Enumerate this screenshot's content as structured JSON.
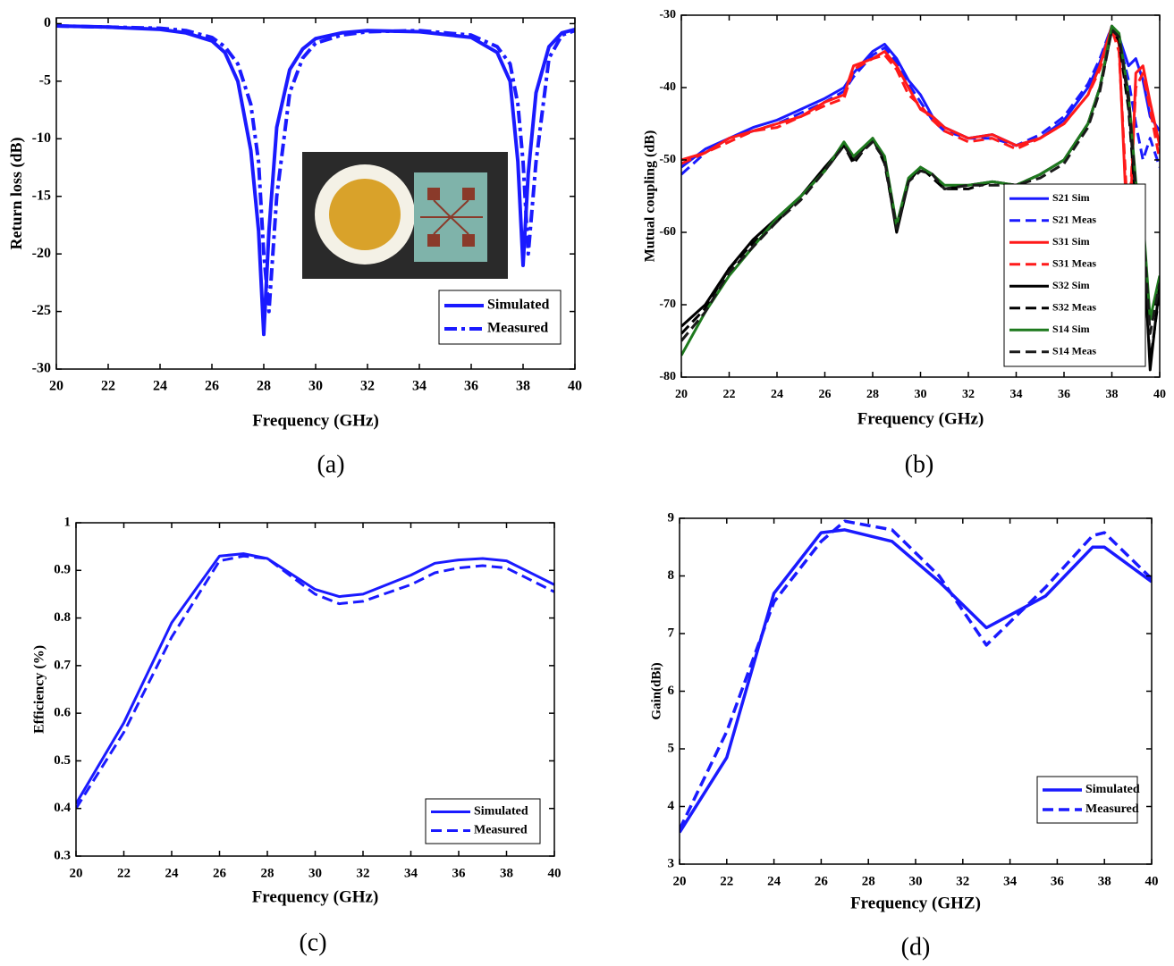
{
  "chart_data": [
    {
      "type": "line",
      "caption": "(a)",
      "xlabel": "Frequency (GHz)",
      "ylabel": "Return loss (dB)",
      "xlim": [
        20,
        40
      ],
      "xticks": [
        20,
        22,
        24,
        26,
        28,
        30,
        32,
        34,
        36,
        38,
        40
      ],
      "ylim": [
        -30,
        0.5
      ],
      "yticks": [
        0,
        -5,
        -10,
        -15,
        -20,
        -25,
        -30
      ],
      "legend": "lower right",
      "x": [
        20,
        22,
        24,
        25,
        26,
        26.5,
        27,
        27.5,
        27.8,
        28,
        28.2,
        28.5,
        29,
        29.5,
        30,
        31,
        32,
        34,
        36,
        37,
        37.5,
        37.8,
        38,
        38.2,
        38.5,
        39,
        39.5,
        40
      ],
      "series": [
        {
          "name": "Simulated",
          "color": "#1a1aff",
          "line_style": "solid",
          "values": [
            -0.2,
            -0.3,
            -0.5,
            -0.8,
            -1.5,
            -2.5,
            -5,
            -11,
            -18,
            -27,
            -18,
            -9,
            -4,
            -2.2,
            -1.3,
            -0.8,
            -0.6,
            -0.7,
            -1.2,
            -2.5,
            -5,
            -12,
            -21,
            -13,
            -6,
            -2,
            -0.8,
            -0.5
          ]
        },
        {
          "name": "Measured",
          "color": "#1a1aff",
          "line_style": "dashdot",
          "values": [
            -0.2,
            -0.3,
            -0.4,
            -0.6,
            -1.2,
            -2,
            -3.5,
            -7,
            -12,
            -20,
            -25,
            -15,
            -6,
            -3,
            -1.7,
            -1,
            -0.7,
            -0.6,
            -1,
            -2,
            -3.5,
            -7,
            -12,
            -20,
            -12,
            -3,
            -1,
            -0.6
          ]
        }
      ]
    },
    {
      "type": "line",
      "caption": "(b)",
      "xlabel": "Frequency (GHz)",
      "ylabel": "Mutual coupling (dB)",
      "xlim": [
        20,
        40
      ],
      "xticks": [
        20,
        22,
        24,
        26,
        28,
        30,
        32,
        34,
        36,
        38,
        40
      ],
      "ylim": [
        -80,
        -30
      ],
      "yticks": [
        -30,
        -40,
        -50,
        -60,
        -70,
        -80
      ],
      "legend": "lower right",
      "x": [
        20,
        21,
        22,
        23,
        24,
        25,
        26,
        26.8,
        27.2,
        28,
        28.5,
        29,
        29.5,
        30,
        30.5,
        31,
        32,
        33,
        34,
        35,
        36,
        37,
        37.5,
        38,
        38.3,
        38.7,
        39,
        39.3,
        39.6,
        40
      ],
      "series": [
        {
          "name": "S21 Sim",
          "color": "#1a1aff",
          "line_style": "solid",
          "values": [
            -51,
            -48.5,
            -47,
            -45.5,
            -44.5,
            -43,
            -41.5,
            -40,
            -38,
            -35,
            -34,
            -36,
            -39,
            -41,
            -44,
            -45.5,
            -47,
            -46.5,
            -48,
            -47,
            -44.5,
            -40,
            -36.5,
            -31.5,
            -33,
            -37,
            -36,
            -39,
            -44,
            -46
          ]
        },
        {
          "name": "S21 Meas",
          "color": "#1a1aff",
          "line_style": "dashed",
          "values": [
            -52,
            -49,
            -47,
            -46,
            -45,
            -43.5,
            -42,
            -40.5,
            -38.5,
            -35.5,
            -34.5,
            -36.5,
            -39.5,
            -42,
            -44.5,
            -46,
            -47,
            -47,
            -48,
            -46.5,
            -44,
            -39.5,
            -36,
            -31.5,
            -33.5,
            -39,
            -45,
            -50,
            -47,
            -51
          ]
        },
        {
          "name": "S31 Sim",
          "color": "#ff1a1a",
          "line_style": "solid",
          "values": [
            -50,
            -49,
            -47,
            -46,
            -45,
            -44,
            -42,
            -41,
            -37,
            -36,
            -35,
            -37,
            -40,
            -43,
            -44,
            -45.5,
            -47,
            -46.5,
            -48,
            -47,
            -45,
            -41,
            -37,
            -31.5,
            -34,
            -64,
            -38,
            -37,
            -42,
            -48
          ]
        },
        {
          "name": "S31 Meas",
          "color": "#ff1a1a",
          "line_style": "dashed",
          "values": [
            -50.5,
            -49,
            -47.5,
            -46,
            -45.5,
            -44,
            -42.5,
            -41.5,
            -37.5,
            -36,
            -35.5,
            -37.5,
            -41,
            -42.5,
            -44.5,
            -46,
            -47.5,
            -47,
            -48.5,
            -47,
            -45,
            -41,
            -37.5,
            -32,
            -35,
            -60,
            -40,
            -38,
            -43,
            -50
          ]
        },
        {
          "name": "S32 Sim",
          "color": "#000000",
          "line_style": "solid",
          "values": [
            -73,
            -70,
            -65,
            -61,
            -58,
            -55,
            -51,
            -48,
            -50,
            -47,
            -50,
            -60,
            -53,
            -51,
            -52,
            -54,
            -53.5,
            -53,
            -53.5,
            -52,
            -50,
            -45,
            -40,
            -32,
            -33,
            -42,
            -55,
            -60,
            -79,
            -67
          ]
        },
        {
          "name": "S32 Meas",
          "color": "#000000",
          "line_style": "dashed",
          "values": [
            -74,
            -70.5,
            -65,
            -61.5,
            -58.5,
            -55,
            -51.5,
            -48,
            -50.5,
            -47,
            -50.5,
            -59.5,
            -53,
            -51,
            -52.5,
            -54,
            -54,
            -53,
            -53.5,
            -52,
            -50,
            -45,
            -40,
            -32,
            -33.5,
            -43,
            -56,
            -61,
            -78,
            -68
          ]
        },
        {
          "name": "S14 Sim",
          "color": "#1e7a1e",
          "line_style": "solid",
          "values": [
            -77,
            -71,
            -66,
            -62,
            -58,
            -55,
            -51.5,
            -47.5,
            -49.5,
            -47,
            -49.5,
            -59,
            -52.5,
            -51,
            -52,
            -53.5,
            -53.5,
            -53,
            -53.5,
            -52,
            -50,
            -45,
            -40,
            -31.5,
            -32.5,
            -41,
            -53,
            -58,
            -72,
            -66
          ]
        },
        {
          "name": "S14 Meas",
          "color": "#1a1a1a",
          "line_style": "dashed",
          "values": [
            -75,
            -71,
            -65.5,
            -62,
            -58.5,
            -55.5,
            -51.5,
            -48,
            -50,
            -47.5,
            -50,
            -59.5,
            -53,
            -51.5,
            -52,
            -54,
            -53.5,
            -53.5,
            -53.5,
            -52.5,
            -50.5,
            -45.5,
            -40.5,
            -32,
            -33,
            -41.5,
            -54,
            -59,
            -74,
            -67
          ]
        }
      ]
    },
    {
      "type": "line",
      "caption": "(c)",
      "xlabel": "Frequency (GHz)",
      "ylabel": "Efficiency (%)",
      "xlim": [
        20,
        40
      ],
      "xticks": [
        20,
        22,
        24,
        26,
        28,
        30,
        32,
        34,
        36,
        38,
        40
      ],
      "ylim": [
        0.3,
        1
      ],
      "yticks": [
        0.3,
        0.4,
        0.5,
        0.6,
        0.7,
        0.8,
        0.9,
        1
      ],
      "legend": "lower right",
      "x": [
        20,
        22,
        24,
        26,
        27,
        28,
        30,
        31,
        32,
        34,
        35,
        36,
        37,
        38,
        40
      ],
      "series": [
        {
          "name": "Simulated",
          "color": "#1a1aff",
          "line_style": "solid",
          "values": [
            0.41,
            0.58,
            0.79,
            0.93,
            0.935,
            0.925,
            0.86,
            0.845,
            0.85,
            0.89,
            0.915,
            0.922,
            0.925,
            0.92,
            0.87
          ]
        },
        {
          "name": "Measured",
          "color": "#1a1aff",
          "line_style": "dashed",
          "values": [
            0.4,
            0.56,
            0.76,
            0.92,
            0.93,
            0.925,
            0.85,
            0.83,
            0.835,
            0.87,
            0.895,
            0.905,
            0.91,
            0.905,
            0.855
          ]
        }
      ]
    },
    {
      "type": "line",
      "caption": "(d)",
      "xlabel": "Frequency (GHZ)",
      "ylabel": "Gain(dBi)",
      "xlim": [
        20,
        40
      ],
      "xticks": [
        20,
        22,
        24,
        26,
        28,
        30,
        32,
        34,
        36,
        38,
        40
      ],
      "ylim": [
        3,
        9
      ],
      "yticks": [
        3,
        4,
        5,
        6,
        7,
        8,
        9
      ],
      "legend": "lower right",
      "x": [
        20,
        22,
        24,
        26,
        27,
        29,
        31,
        33,
        35.5,
        37.5,
        38,
        40
      ],
      "series": [
        {
          "name": "Simulated",
          "color": "#1a1aff",
          "line_style": "solid",
          "values": [
            3.55,
            4.85,
            7.7,
            8.75,
            8.8,
            8.6,
            7.9,
            7.1,
            7.65,
            8.5,
            8.5,
            7.9
          ]
        },
        {
          "name": "Measured",
          "color": "#1a1aff",
          "line_style": "dashed",
          "values": [
            3.6,
            5.3,
            7.55,
            8.6,
            8.95,
            8.8,
            8.0,
            6.8,
            7.8,
            8.7,
            8.75,
            7.95
          ]
        }
      ]
    }
  ]
}
